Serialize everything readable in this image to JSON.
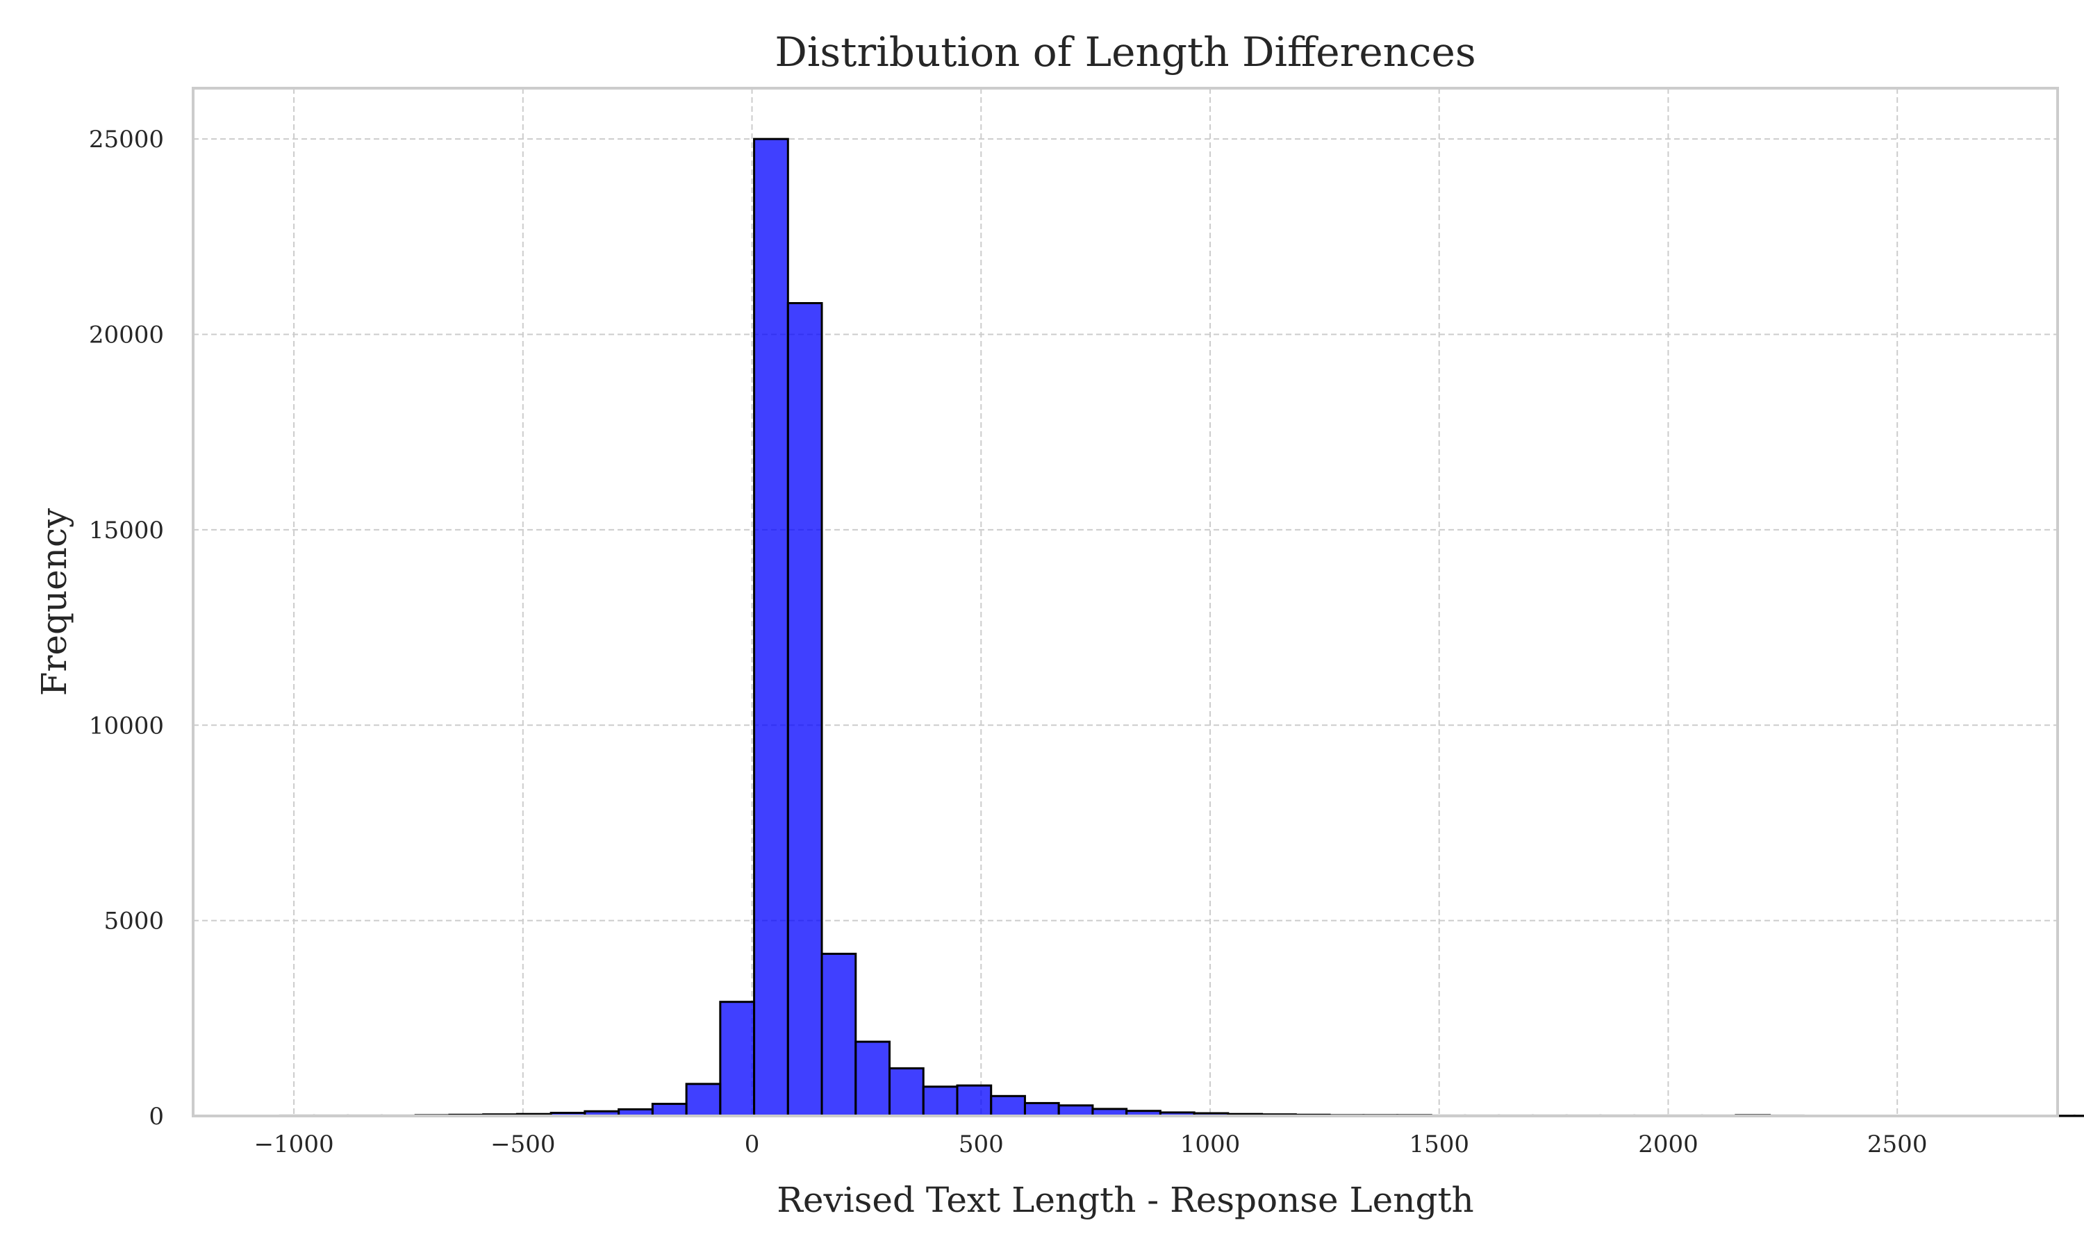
{
  "chart_data": {
    "type": "bar",
    "title": "Distribution of Length Differences",
    "xlabel": "Revised Text Length - Response Length",
    "ylabel": "Frequency",
    "xlim": [
      -1220,
      2850
    ],
    "ylim": [
      0,
      26300
    ],
    "xticks": [
      -1000,
      -500,
      0,
      500,
      1000,
      1500,
      2000,
      2500
    ],
    "xtick_labels": [
      "−1000",
      "−500",
      "0",
      "500",
      "1000",
      "1500",
      "2000",
      "2500"
    ],
    "yticks": [
      0,
      5000,
      10000,
      15000,
      20000,
      25000
    ],
    "ytick_labels": [
      "0",
      "5000",
      "10000",
      "15000",
      "20000",
      "25000"
    ],
    "grid": true,
    "bar_color": "#0000ff",
    "bar_edge_color": "#000000",
    "bin_width": 73.9,
    "bin_start": -1030,
    "values": [
      10,
      10,
      10,
      10,
      20,
      30,
      40,
      50,
      80,
      120,
      170,
      310,
      820,
      2920,
      25000,
      20800,
      4150,
      1900,
      1220,
      750,
      780,
      510,
      330,
      270,
      180,
      130,
      90,
      70,
      50,
      40,
      30,
      20,
      20,
      20,
      10,
      10,
      10,
      10,
      10,
      10,
      10,
      10,
      10,
      20,
      10,
      5,
      5,
      5,
      5,
      5,
      5,
      5,
      5,
      5,
      5,
      5,
      5,
      5,
      5,
      5,
      10
    ]
  }
}
